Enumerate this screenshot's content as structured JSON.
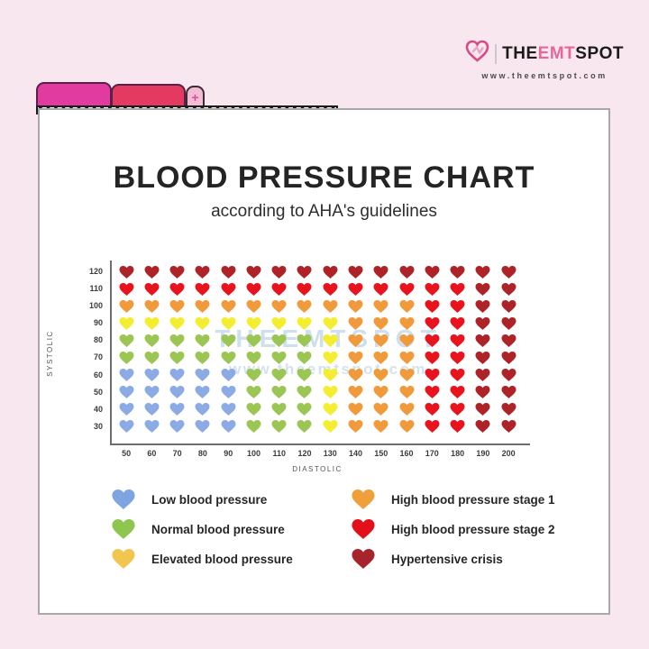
{
  "logo": {
    "brand_the": "THE",
    "brand_emt": "EMT",
    "brand_spot": "SPOT",
    "url": "www.theemtspot.com",
    "heart_color": "#d94b86",
    "heart_color_light": "#f0a3c0"
  },
  "tabs": {
    "plus_label": "+"
  },
  "header": {
    "title": "BLOOD PRESSURE CHART",
    "subtitle": "according to AHA's guidelines"
  },
  "watermark": {
    "line1": "THEEMTSPOT",
    "line2": "www.theemtspot.com"
  },
  "chart_data": {
    "type": "heatmap",
    "title": "BLOOD PRESSURE CHART",
    "subtitle": "according to AHA's guidelines",
    "xlabel": "DIASTOLIC",
    "ylabel": "SYSTOLIC",
    "x_ticks": [
      50,
      60,
      70,
      80,
      90,
      100,
      110,
      120,
      130,
      140,
      150,
      160,
      170,
      180,
      190,
      200
    ],
    "y_ticks": [
      120,
      110,
      100,
      90,
      80,
      70,
      60,
      50,
      40,
      30
    ],
    "palette": {
      "B": "#8cabe5",
      "G": "#9cc653",
      "Y": "#f4ee33",
      "O": "#f09a3c",
      "R": "#e8131d",
      "D": "#ae2328"
    },
    "categories": {
      "B": "Low blood pressure",
      "G": "Normal blood pressure",
      "Y": "Elevated blood pressure",
      "O": "High blood pressure stage 1",
      "R": "High blood pressure stage 2",
      "D": "Hypertensive crisis"
    },
    "grid": [
      "DDDDDDDDDDDDDDDD",
      "RRRRRRRRRRRRRRDD",
      "OOOOOOOOOOOORRDD",
      "YYYYYYYYYOOORRDD",
      "GGGGGGGGYOOORRDD",
      "GGGGGGGGYOOORRDD",
      "BBBBBGGGYOOORRDD",
      "BBBBBGGGYOOORRDD",
      "BBBBBGGGYOOORRDD",
      "BBBBBGGGYOOORRDD"
    ],
    "legend_position": "bottom",
    "grid_lines": false
  },
  "legend": {
    "left": [
      {
        "label": "Low blood pressure",
        "color": "#7ea4e2"
      },
      {
        "label": "Normal blood pressure",
        "color": "#8ec64f"
      },
      {
        "label": "Elevated blood pressure",
        "color": "#f2c64e"
      }
    ],
    "right": [
      {
        "label": "High blood pressure stage 1",
        "color": "#efa03b"
      },
      {
        "label": "High blood pressure stage 2",
        "color": "#e41019"
      },
      {
        "label": "Hypertensive crisis",
        "color": "#a8242c"
      }
    ]
  }
}
